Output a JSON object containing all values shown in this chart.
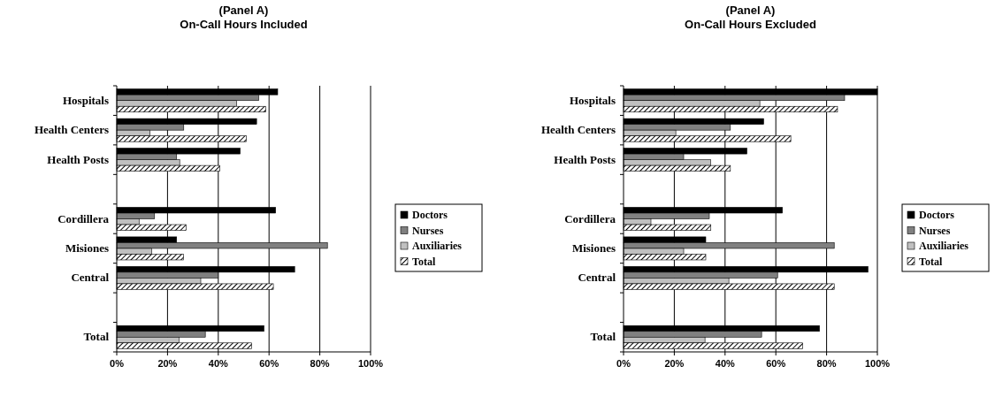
{
  "chart_data": [
    {
      "type": "bar",
      "orientation": "horizontal",
      "title": "(Panel A)\nOn-Call Hours Included",
      "categories": [
        "Hospitals",
        "Health Centers",
        "Health Posts",
        null,
        "Cordillera",
        "Misiones",
        "Central",
        null,
        "Total"
      ],
      "xlim": [
        0,
        100
      ],
      "xticks": [
        {
          "value": 0,
          "label": "0%"
        },
        {
          "value": 20,
          "label": "20%"
        },
        {
          "value": 40,
          "label": "40%"
        },
        {
          "value": 60,
          "label": "60%"
        },
        {
          "value": 80,
          "label": "80%"
        },
        {
          "value": 100,
          "label": "100%"
        }
      ],
      "grid": "x",
      "legend": "right",
      "series": [
        {
          "name": "Doctors",
          "color": "#000000",
          "values": [
            63.4,
            55.1,
            48.6,
            null,
            62.6,
            23.6,
            70.1,
            null,
            58.0
          ]
        },
        {
          "name": "Nurses",
          "color": "#808080",
          "values": [
            55.9,
            26.4,
            23.6,
            null,
            14.9,
            83.0,
            40.0,
            null,
            34.9
          ]
        },
        {
          "name": "Auxiliaries",
          "color": "#c0c0c0",
          "values": [
            47.2,
            13.1,
            24.8,
            null,
            8.8,
            13.7,
            33.1,
            null,
            24.5
          ]
        },
        {
          "name": "Total",
          "color": "#000000",
          "values": [
            58.7,
            51.0,
            40.6,
            null,
            27.3,
            26.3,
            61.7,
            null,
            53.1
          ]
        }
      ]
    },
    {
      "type": "bar",
      "orientation": "horizontal",
      "title": "(Panel A)\nOn-Call Hours Excluded",
      "categories": [
        "Hospitals",
        "Health Centers",
        "Health Posts",
        null,
        "Cordillera",
        "Misiones",
        "Central",
        null,
        "Total"
      ],
      "xlim": [
        0,
        100
      ],
      "xticks": [
        {
          "value": 0,
          "label": "0%"
        },
        {
          "value": 20,
          "label": "20%"
        },
        {
          "value": 40,
          "label": "40%"
        },
        {
          "value": 60,
          "label": "60%"
        },
        {
          "value": 80,
          "label": "80%"
        },
        {
          "value": 100,
          "label": "100%"
        }
      ],
      "grid": "x",
      "legend": "right",
      "series": [
        {
          "name": "Doctors",
          "color": "#000000",
          "values": [
            100,
            55.2,
            48.6,
            null,
            62.6,
            32.4,
            96.3,
            null,
            77.2
          ]
        },
        {
          "name": "Nurses",
          "color": "#808080",
          "values": [
            87.1,
            42.1,
            23.7,
            null,
            33.8,
            83.0,
            60.7,
            null,
            54.4
          ]
        },
        {
          "name": "Auxiliaries",
          "color": "#c0c0c0",
          "values": [
            53.7,
            20.6,
            34.3,
            null,
            10.8,
            23.7,
            41.5,
            null,
            32.1
          ]
        },
        {
          "name": "Total",
          "color": "#000000",
          "values": [
            84.3,
            65.9,
            42.1,
            null,
            34.4,
            32.4,
            83.0,
            null,
            70.6
          ]
        }
      ]
    }
  ]
}
